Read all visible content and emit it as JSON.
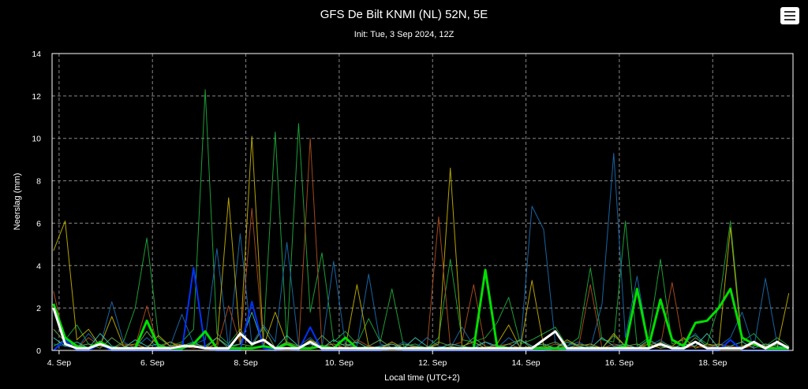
{
  "header": {
    "title": "GFS De Bilt KNMI (NL) 52N, 5E",
    "subtitle": "Init: Tue, 3 Sep 2024, 12Z",
    "menu_icon": "hamburger-menu-icon"
  },
  "chart_data": {
    "type": "line",
    "title": "GFS De Bilt KNMI (NL) 52N, 5E",
    "subtitle": "Init: Tue, 3 Sep 2024, 12Z",
    "xlabel": "Local time (UTC+2)",
    "ylabel": "Neerslag (mm)",
    "xlim": [
      3.85,
      19.72
    ],
    "ylim": [
      0,
      14
    ],
    "y_ticks": [
      0,
      2,
      4,
      6,
      8,
      10,
      12,
      14
    ],
    "x_ticks": [
      4,
      6,
      8,
      10,
      12,
      14,
      16,
      18
    ],
    "x_tick_labels": [
      "4. Sep",
      "6. Sep",
      "8. Sep",
      "10. Sep",
      "12. Sep",
      "14. Sep",
      "16. Sep",
      "18. Sep"
    ],
    "x_units": "day of September 2024",
    "grid": true,
    "legend": "none",
    "x": [
      3.88,
      4.13,
      4.38,
      4.63,
      4.88,
      5.13,
      5.38,
      5.63,
      5.88,
      6.13,
      6.38,
      6.63,
      6.88,
      7.13,
      7.38,
      7.63,
      7.88,
      8.13,
      8.38,
      8.63,
      8.88,
      9.13,
      9.38,
      9.63,
      9.88,
      10.13,
      10.38,
      10.63,
      10.88,
      11.13,
      11.38,
      11.63,
      11.88,
      12.13,
      12.38,
      12.63,
      12.88,
      13.13,
      13.38,
      13.63,
      13.88,
      14.13,
      14.38,
      14.63,
      14.88,
      15.13,
      15.38,
      15.63,
      15.88,
      16.13,
      16.38,
      16.63,
      16.88,
      17.13,
      17.38,
      17.63,
      17.88,
      18.13,
      18.38,
      18.63,
      18.88,
      19.13,
      19.38,
      19.63
    ],
    "series": [
      {
        "color": "#00e000",
        "width": 3,
        "values": [
          2.2,
          0.6,
          0.2,
          0.1,
          0.4,
          0.1,
          0.1,
          0.1,
          1.4,
          0.2,
          0.1,
          0.1,
          0.3,
          0.9,
          0.1,
          0.1,
          0.1,
          0.1,
          0.2,
          0.1,
          0.3,
          0.1,
          0.1,
          0.2,
          0.1,
          0.6,
          0.1,
          0.1,
          0.1,
          0.1,
          0.1,
          0.1,
          0.1,
          0.1,
          0.1,
          0.1,
          0.1,
          3.8,
          0.2,
          0.1,
          0.1,
          0.1,
          0.1,
          0.1,
          0.1,
          0.1,
          0.1,
          0.1,
          0.1,
          0.2,
          2.9,
          0.2,
          2.4,
          0.5,
          0.2,
          1.3,
          1.4,
          2.0,
          2.9,
          0.6,
          0.3,
          0.1,
          0.1,
          0.1
        ]
      },
      {
        "color": "#ffffff",
        "width": 3,
        "values": [
          2.0,
          0.3,
          0.1,
          0.1,
          0.3,
          0.1,
          0.1,
          0.1,
          0.1,
          0.1,
          0.1,
          0.2,
          0.2,
          0.1,
          0.1,
          0.1,
          0.8,
          0.3,
          0.5,
          0.1,
          0.1,
          0.1,
          0.4,
          0.1,
          0.1,
          0.1,
          0.1,
          0.1,
          0.1,
          0.1,
          0.1,
          0.1,
          0.1,
          0.1,
          0.1,
          0.1,
          0.1,
          0.1,
          0.1,
          0.1,
          0.1,
          0.1,
          0.5,
          0.9,
          0.1,
          0.1,
          0.1,
          0.1,
          0.1,
          0.1,
          0.1,
          0.1,
          0.3,
          0.1,
          0.1,
          0.4,
          0.1,
          0.1,
          0.1,
          0.1,
          0.4,
          0.1,
          0.4,
          0.1
        ]
      },
      {
        "color": "#0033ff",
        "width": 2,
        "values": [
          0.0,
          0.5,
          0.0,
          0.0,
          0.3,
          0.0,
          0.0,
          0.0,
          0.0,
          0.0,
          0.0,
          0.0,
          3.9,
          0.1,
          0.0,
          0.0,
          0.0,
          2.3,
          0.1,
          0.0,
          0.1,
          0.0,
          1.1,
          0.0,
          0.0,
          0.0,
          0.0,
          0.0,
          0.0,
          0.1,
          0.0,
          0.0,
          0.0,
          0.0,
          0.0,
          0.0,
          0.0,
          0.0,
          0.0,
          0.0,
          0.0,
          0.0,
          0.0,
          0.1,
          0.0,
          0.0,
          0.0,
          0.0,
          0.0,
          0.0,
          0.0,
          0.0,
          0.0,
          0.0,
          0.0,
          0.0,
          0.0,
          0.0,
          0.5,
          0.0,
          0.0,
          0.0,
          0.0,
          0.0
        ]
      },
      {
        "color": "#1fae3c",
        "width": 1,
        "values": [
          0.2,
          0.5,
          1.2,
          0.3,
          0.2,
          0.1,
          0.4,
          2.0,
          5.3,
          0.6,
          0.2,
          0.4,
          1.0,
          12.3,
          0.8,
          0.3,
          1.0,
          0.2,
          0.6,
          10.3,
          0.4,
          10.7,
          1.8,
          4.6,
          0.4,
          0.9,
          0.3,
          1.5,
          0.4,
          2.9,
          0.2,
          0.3,
          0.1,
          0.6,
          4.3,
          0.5,
          0.4,
          0.6,
          1.3,
          2.5,
          0.3,
          0.5,
          0.8,
          1.1,
          0.2,
          0.6,
          3.9,
          0.5,
          0.4,
          6.1,
          0.2,
          0.6,
          4.3,
          0.3,
          0.5,
          0.7,
          0.3,
          2.1,
          6.1,
          0.4,
          0.8,
          0.2,
          0.6,
          0.2
        ]
      },
      {
        "color": "#1a6fb4",
        "width": 1,
        "values": [
          0.3,
          0.2,
          0.1,
          0.8,
          0.2,
          2.3,
          0.4,
          0.1,
          0.6,
          0.1,
          0.2,
          1.7,
          0.3,
          0.5,
          4.8,
          0.1,
          5.5,
          0.3,
          1.2,
          0.4,
          5.1,
          0.2,
          0.6,
          0.1,
          4.2,
          0.3,
          0.2,
          3.6,
          0.3,
          0.1,
          0.4,
          0.1,
          0.6,
          0.2,
          0.1,
          1.1,
          0.2,
          0.4,
          0.1,
          0.6,
          0.2,
          6.8,
          5.7,
          0.3,
          0.2,
          0.4,
          0.1,
          2.2,
          9.3,
          0.6,
          3.5,
          0.2,
          0.5,
          0.1,
          0.3,
          0.8,
          0.1,
          0.2,
          0.6,
          1.8,
          0.1,
          3.4,
          0.3,
          0.1
        ]
      },
      {
        "color": "#c8b400",
        "width": 1,
        "values": [
          4.7,
          6.1,
          0.5,
          1.0,
          0.2,
          1.6,
          0.2,
          0.3,
          0.1,
          0.7,
          0.2,
          0.3,
          0.2,
          0.1,
          0.3,
          7.2,
          0.4,
          10.1,
          0.2,
          1.8,
          0.3,
          0.1,
          0.5,
          0.2,
          0.3,
          0.1,
          3.1,
          0.2,
          0.1,
          0.4,
          0.1,
          0.2,
          0.1,
          0.3,
          8.6,
          0.2,
          0.4,
          0.1,
          0.3,
          1.2,
          0.1,
          3.3,
          0.2,
          0.1,
          0.5,
          0.2,
          0.3,
          0.1,
          0.8,
          0.2,
          0.1,
          0.3,
          0.1,
          0.2,
          0.6,
          0.1,
          0.3,
          0.2,
          5.8,
          0.1,
          0.3,
          0.2,
          0.1,
          2.7
        ]
      },
      {
        "color": "#b4501e",
        "width": 1,
        "values": [
          2.8,
          0.3,
          0.1,
          0.6,
          0.2,
          0.1,
          0.3,
          0.2,
          2.1,
          0.1,
          0.4,
          0.2,
          0.1,
          0.2,
          0.1,
          2.1,
          0.3,
          6.7,
          0.2,
          0.1,
          0.4,
          0.1,
          10.0,
          0.2,
          0.3,
          0.1,
          0.5,
          0.2,
          0.1,
          0.3,
          0.1,
          0.2,
          0.1,
          6.3,
          0.2,
          0.4,
          3.1,
          0.1,
          0.2,
          0.3,
          0.1,
          0.2,
          0.1,
          0.3,
          0.1,
          0.2,
          3.1,
          0.1,
          0.3,
          0.2,
          0.1,
          0.4,
          0.2,
          3.2,
          0.1,
          0.2,
          0.1,
          0.3,
          0.2,
          0.1,
          0.2,
          0.3,
          0.1,
          0.2
        ]
      },
      {
        "color": "#3ec8b4",
        "width": 1,
        "values": [
          0.6,
          0.2,
          0.4,
          0.1,
          0.8,
          0.2,
          0.1,
          0.5,
          0.2,
          0.3,
          0.1,
          0.2,
          0.4,
          0.1,
          0.6,
          0.2,
          0.3,
          1.8,
          0.2,
          0.1,
          0.7,
          0.2,
          0.3,
          0.1,
          0.5,
          0.2,
          0.4,
          0.1,
          0.2,
          0.3,
          0.1,
          0.6,
          0.2,
          0.1,
          0.3,
          0.2,
          0.1,
          0.4,
          0.2,
          0.1,
          0.5,
          0.2,
          0.3,
          0.1,
          0.4,
          0.2,
          0.1,
          0.6,
          0.2,
          0.3,
          0.1,
          0.5,
          0.2,
          0.1,
          0.3,
          0.2,
          0.8,
          0.1,
          0.2,
          0.4,
          0.1,
          0.3,
          0.2,
          0.1
        ]
      },
      {
        "color": "#6aa84f",
        "width": 1,
        "values": [
          1.0,
          0.4,
          0.2,
          0.3,
          0.1,
          0.6,
          0.2,
          0.1,
          0.9,
          0.2,
          0.4,
          0.1,
          0.3,
          0.2,
          0.6,
          0.1,
          0.3,
          0.2,
          1.1,
          0.1,
          0.4,
          0.2,
          0.1,
          0.7,
          0.2,
          0.3,
          0.1,
          0.2,
          0.5,
          0.1,
          0.3,
          0.2,
          0.1,
          0.4,
          0.2,
          0.1,
          0.6,
          0.2,
          0.1,
          0.3,
          0.5,
          0.1,
          0.2,
          0.4,
          0.1,
          0.3,
          0.2,
          0.1,
          0.7,
          0.2,
          0.3,
          0.1,
          0.4,
          0.2,
          0.1,
          0.6,
          0.2,
          0.3,
          0.1,
          0.2,
          0.4,
          0.1,
          0.3,
          0.2
        ]
      }
    ]
  }
}
